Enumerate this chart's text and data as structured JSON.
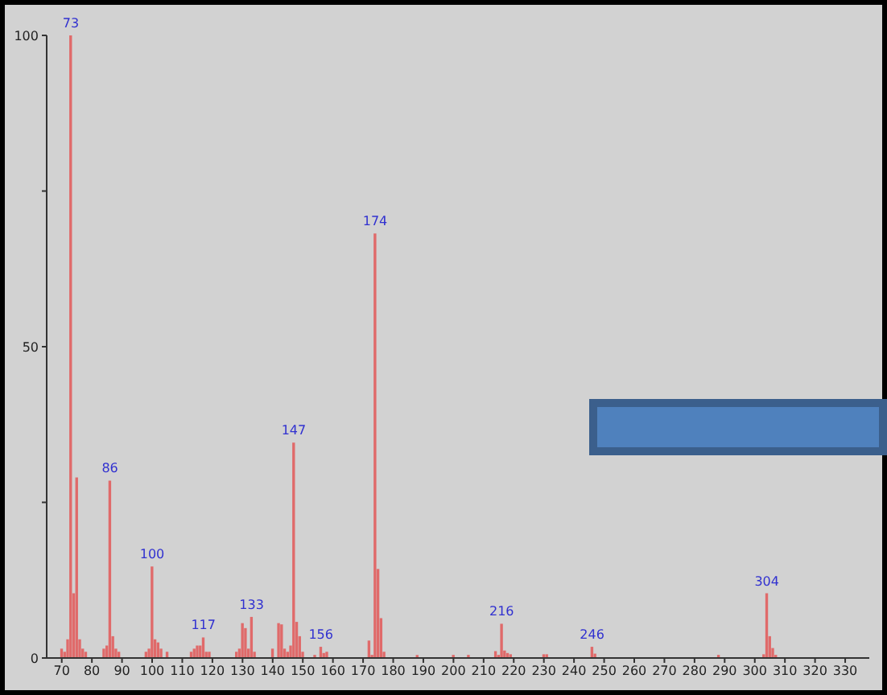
{
  "chart_data": {
    "type": "bar",
    "x": [
      70,
      71,
      72,
      73,
      74,
      75,
      76,
      77,
      78,
      84,
      85,
      86,
      87,
      88,
      89,
      98,
      99,
      100,
      101,
      102,
      103,
      105,
      113,
      114,
      115,
      116,
      117,
      118,
      119,
      128,
      129,
      130,
      131,
      132,
      133,
      134,
      140,
      142,
      143,
      144,
      145,
      146,
      147,
      148,
      149,
      150,
      154,
      156,
      157,
      158,
      172,
      173,
      174,
      175,
      176,
      177,
      188,
      200,
      205,
      214,
      215,
      216,
      217,
      218,
      219,
      230,
      231,
      246,
      247,
      288,
      303,
      304,
      305,
      306,
      307
    ],
    "values": [
      1.5,
      1,
      3,
      100,
      10.4,
      29,
      3,
      1.5,
      1,
      1.5,
      2,
      28.5,
      3.5,
      1.5,
      1,
      1,
      1.5,
      14.7,
      3,
      2.5,
      1.5,
      1,
      1,
      1.5,
      2,
      2,
      3.3,
      1,
      1,
      1,
      1.5,
      5.6,
      4.8,
      1.5,
      6.6,
      1,
      1.5,
      5.6,
      5.4,
      1.5,
      1,
      2,
      34.6,
      5.8,
      3.5,
      1,
      0.5,
      1.8,
      0.8,
      1,
      2.8,
      0.5,
      68.2,
      14.3,
      6.4,
      1,
      0.5,
      0.5,
      0.5,
      1.1,
      0.5,
      5.5,
      1.2,
      0.8,
      0.6,
      0.6,
      0.6,
      1.8,
      0.7,
      0.5,
      0.6,
      10.4,
      3.5,
      1.6,
      0.5
    ],
    "color": "#e06a6a",
    "xlim": [
      65,
      338
    ],
    "xticks": [
      70,
      80,
      90,
      100,
      110,
      120,
      130,
      140,
      150,
      160,
      170,
      180,
      190,
      200,
      210,
      220,
      230,
      240,
      250,
      260,
      270,
      280,
      290,
      300,
      310,
      320,
      330
    ],
    "ylim": [
      0,
      100
    ],
    "yticks": [
      0,
      {
        "value": 25,
        "label": null
      },
      50,
      {
        "value": 75,
        "label": null
      },
      100
    ],
    "grid": false,
    "annotations": [
      {
        "text": "73",
        "x": 73,
        "y": 100
      },
      {
        "text": "86",
        "x": 86,
        "y": 28.5
      },
      {
        "text": "100",
        "x": 100,
        "y": 14.7
      },
      {
        "text": "117",
        "x": 117,
        "y": 3.3
      },
      {
        "text": "133",
        "x": 133,
        "y": 6.6
      },
      {
        "text": "147",
        "x": 147,
        "y": 34.6
      },
      {
        "text": "156",
        "x": 156,
        "y": 1.8
      },
      {
        "text": "174",
        "x": 174,
        "y": 68.2
      },
      {
        "text": "216",
        "x": 216,
        "y": 5.5
      },
      {
        "text": "246",
        "x": 246,
        "y": 1.8
      },
      {
        "text": "304",
        "x": 304,
        "y": 10.4
      }
    ]
  }
}
